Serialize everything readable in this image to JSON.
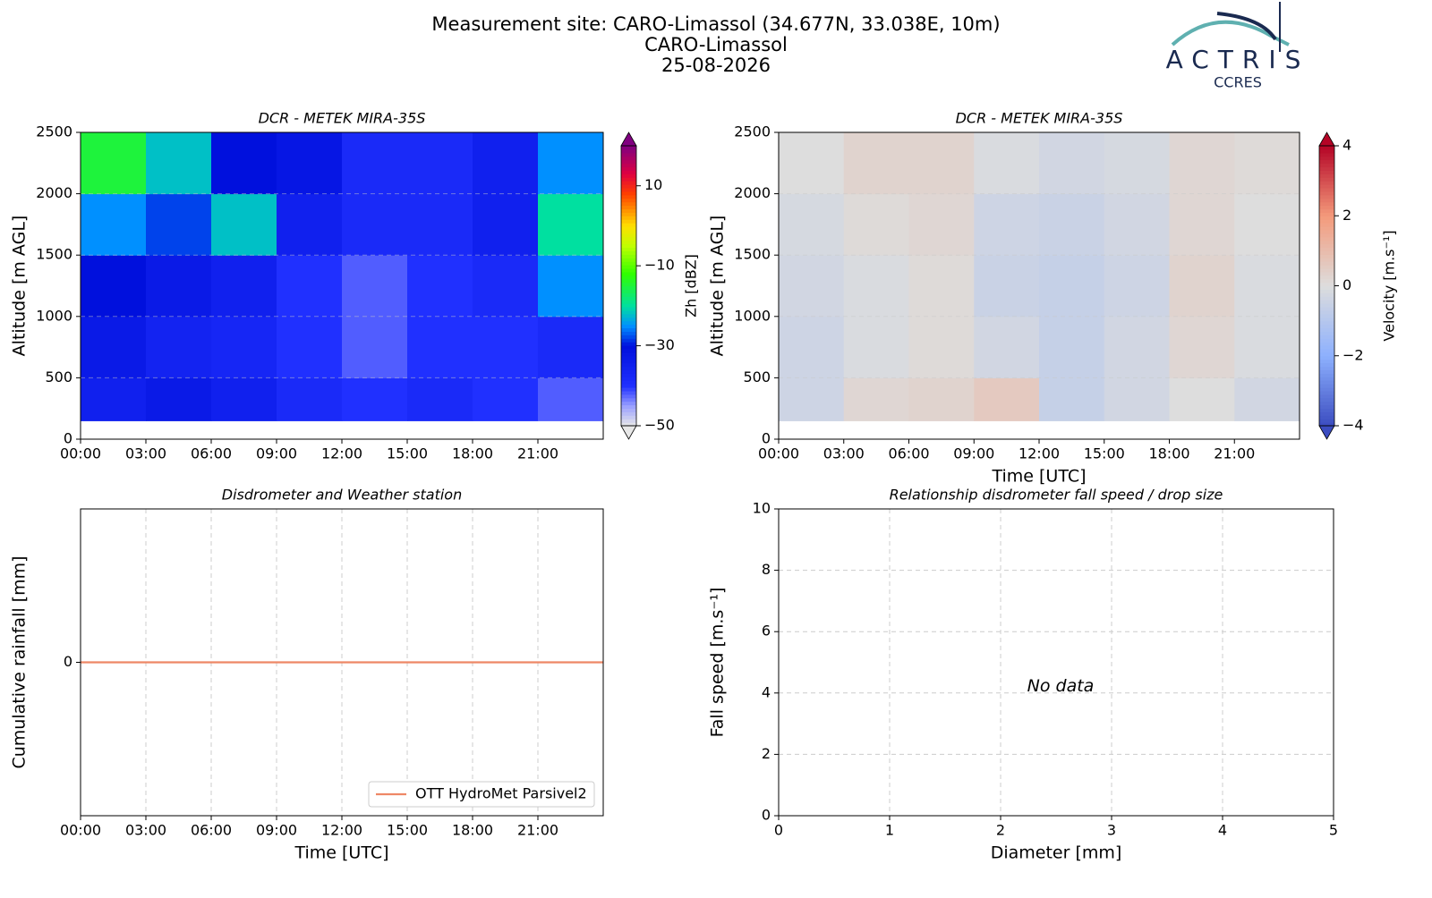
{
  "header": {
    "title": [
      "Measurement site: CARO-Limassol (34.677N, 33.038E, 10m)",
      "CARO-Limassol",
      "25-08-2026"
    ]
  },
  "logo": {
    "name": "ACTRIS",
    "subtitle": "CCRES"
  },
  "chart_data": [
    {
      "type": "heatmap",
      "title": "DCR - METEK MIRA-35S",
      "ylabel": "Altitude [m AGL]",
      "x": [
        0,
        3,
        6,
        9,
        12,
        15,
        18,
        21,
        24
      ],
      "y": [
        150,
        500,
        1000,
        1500,
        2000,
        2500
      ],
      "z": [
        [
          -35,
          -33,
          -35,
          -38,
          -40,
          -38,
          -40,
          -42
        ],
        [
          -33,
          -36,
          -37,
          -40,
          -42,
          -40,
          -40,
          -38
        ],
        [
          -30,
          -33,
          -35,
          -40,
          -42,
          -40,
          -38,
          -25
        ],
        [
          -25,
          -28,
          -22,
          -35,
          -38,
          -38,
          -35,
          -20
        ],
        [
          -15,
          -22,
          -30,
          -32,
          -38,
          -38,
          -35,
          -25
        ]
      ],
      "colormap": "zh",
      "colorbar_label": "Zh [dBZ]",
      "clim": [
        -50,
        20
      ],
      "cticks": [
        {
          "value": -50,
          "label": "−50"
        },
        {
          "value": -30,
          "label": "−30"
        },
        {
          "value": -10,
          "label": "−10"
        },
        10
      ],
      "xlim": [
        0,
        24
      ],
      "xticks": [
        {
          "value": 0,
          "label": "00:00"
        },
        {
          "value": 3,
          "label": "03:00"
        },
        {
          "value": 6,
          "label": "06:00"
        },
        {
          "value": 9,
          "label": "09:00"
        },
        {
          "value": 12,
          "label": "12:00"
        },
        {
          "value": 15,
          "label": "15:00"
        },
        {
          "value": 18,
          "label": "18:00"
        },
        {
          "value": 21,
          "label": "21:00"
        }
      ],
      "ylim": [
        0,
        2500
      ],
      "yticks": [
        0,
        500,
        1000,
        1500,
        2000,
        2500
      ],
      "grid": true
    },
    {
      "type": "heatmap",
      "title": "DCR - METEK MIRA-35S",
      "ylabel": "Altitude [m AGL]",
      "xlabel": "Time [UTC]",
      "x": [
        0,
        3,
        6,
        9,
        12,
        15,
        18,
        21,
        24
      ],
      "y": [
        150,
        500,
        1000,
        1500,
        2000,
        2500
      ],
      "z": [
        [
          -0.4,
          0.2,
          0.3,
          0.6,
          -0.6,
          -0.3,
          0.0,
          -0.3
        ],
        [
          -0.4,
          -0.1,
          0.1,
          -0.3,
          -0.6,
          -0.3,
          0.2,
          -0.1
        ],
        [
          -0.3,
          -0.1,
          0.1,
          -0.5,
          -0.6,
          -0.4,
          0.3,
          -0.1
        ],
        [
          -0.2,
          0.1,
          0.2,
          -0.4,
          -0.5,
          -0.3,
          0.2,
          0.0
        ],
        [
          0.0,
          0.3,
          0.3,
          -0.1,
          -0.3,
          -0.2,
          0.2,
          0.1
        ]
      ],
      "colormap": "coolwarm",
      "colorbar_label": "Velocity [m.s⁻¹]",
      "clim": [
        -4,
        4
      ],
      "cticks": [
        {
          "value": -4,
          "label": "−4"
        },
        {
          "value": -2,
          "label": "−2"
        },
        0,
        2,
        4
      ],
      "xlim": [
        0,
        24
      ],
      "xticks": [
        {
          "value": 0,
          "label": "00:00"
        },
        {
          "value": 3,
          "label": "03:00"
        },
        {
          "value": 6,
          "label": "06:00"
        },
        {
          "value": 9,
          "label": "09:00"
        },
        {
          "value": 12,
          "label": "12:00"
        },
        {
          "value": 15,
          "label": "15:00"
        },
        {
          "value": 18,
          "label": "18:00"
        },
        {
          "value": 21,
          "label": "21:00"
        }
      ],
      "ylim": [
        0,
        2500
      ],
      "yticks": [
        0,
        500,
        1000,
        1500,
        2000,
        2500
      ],
      "grid": true
    },
    {
      "type": "line",
      "title": "Disdrometer and Weather station",
      "ylabel": "Cumulative rainfall [mm]",
      "xlabel": "Time [UTC]",
      "x": [
        0,
        24
      ],
      "series": [
        {
          "name": "OTT HydroMet Parsivel2",
          "color": "#ee8866",
          "values": [
            0,
            0
          ]
        }
      ],
      "legend": "lower right",
      "xlim": [
        0,
        24
      ],
      "xticks": [
        {
          "value": 0,
          "label": "00:00"
        },
        {
          "value": 3,
          "label": "03:00"
        },
        {
          "value": 6,
          "label": "06:00"
        },
        {
          "value": 9,
          "label": "09:00"
        },
        {
          "value": 12,
          "label": "12:00"
        },
        {
          "value": 15,
          "label": "15:00"
        },
        {
          "value": 18,
          "label": "18:00"
        },
        {
          "value": 21,
          "label": "21:00"
        }
      ],
      "ylim": [
        -1,
        1
      ],
      "yticks": [
        0
      ],
      "grid": true
    },
    {
      "type": "scatter",
      "title": "Relationship disdrometer fall speed / drop size",
      "ylabel": "Fall speed [m.s⁻¹]",
      "xlabel": "Diameter [mm]",
      "x": [],
      "values": [],
      "annotation": "No data",
      "xlim": [
        0,
        5
      ],
      "xticks": [
        0,
        1,
        2,
        3,
        4,
        5
      ],
      "ylim": [
        0,
        10
      ],
      "yticks": [
        0,
        2,
        4,
        6,
        8,
        10
      ],
      "grid": true
    }
  ]
}
